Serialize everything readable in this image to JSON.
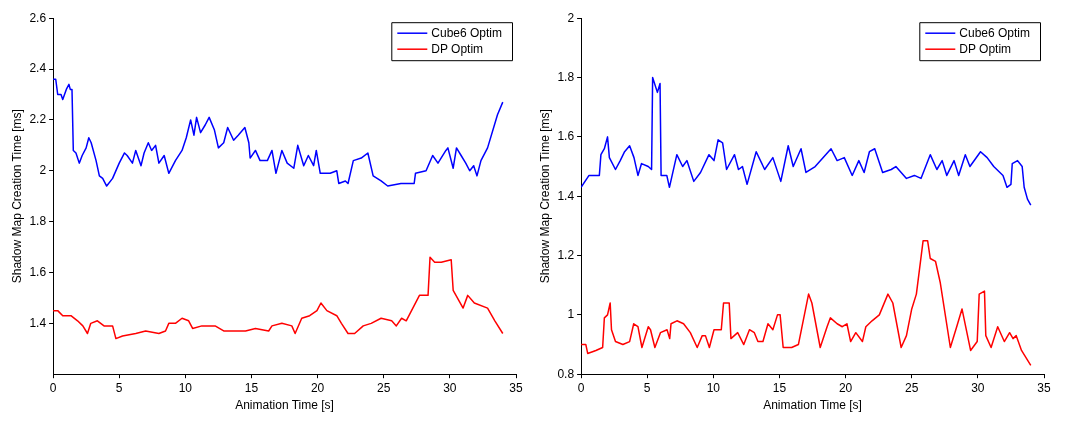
{
  "chart_data": [
    {
      "type": "line",
      "xlabel": "Animation Time [s]",
      "ylabel": "Shadow Map Creation Time [ms]",
      "xlim": [
        0,
        35
      ],
      "xticks": [
        0,
        5,
        10,
        15,
        20,
        25,
        30,
        35
      ],
      "ylim": [
        1.2,
        2.6
      ],
      "yticks": [
        1.4,
        1.6,
        1.8,
        2,
        2.2,
        2.4,
        2.6
      ],
      "grid": false,
      "legend": "top right",
      "marker": "none",
      "line_style": "solid",
      "series": [
        {
          "name": "Cube6 Optim",
          "color": "#0000ff",
          "x": [
            0,
            0.2,
            0.35,
            0.6,
            0.73,
            1.0,
            1.2,
            1.3,
            1.43,
            1.53,
            1.73,
            1.98,
            2.2,
            2.5,
            2.7,
            2.88,
            3.25,
            3.5,
            3.75,
            4.05,
            4.5,
            5.0,
            5.4,
            5.6,
            6.0,
            6.25,
            6.65,
            6.88,
            7.2,
            7.45,
            7.75,
            8.0,
            8.4,
            8.75,
            9.25,
            9.75,
            10.07,
            10.4,
            10.65,
            10.85,
            11.15,
            11.5,
            11.8,
            12.2,
            12.5,
            12.9,
            13.2,
            13.65,
            14.0,
            14.5,
            14.8,
            14.9,
            15.3,
            15.65,
            16.2,
            16.55,
            16.85,
            17.3,
            17.7,
            18.2,
            18.5,
            18.95,
            19.3,
            19.7,
            19.9,
            20.2,
            20.95,
            21.45,
            21.6,
            22.1,
            22.3,
            22.7,
            23.3,
            23.8,
            24.2,
            24.8,
            25.3,
            26.3,
            27.3,
            27.4,
            28.2,
            28.7,
            29.1,
            29.7,
            29.85,
            30.25,
            30.5,
            30.85,
            31.2,
            31.5,
            31.8,
            32.05,
            32.35,
            32.85,
            33.6,
            34.0
          ],
          "values": [
            2.36,
            2.36,
            2.3,
            2.3,
            2.28,
            2.32,
            2.34,
            2.32,
            2.32,
            2.08,
            2.07,
            2.03,
            2.06,
            2.09,
            2.13,
            2.11,
            2.04,
            1.98,
            1.97,
            1.94,
            1.97,
            2.03,
            2.07,
            2.06,
            2.03,
            2.08,
            2.02,
            2.07,
            2.11,
            2.08,
            2.1,
            2.03,
            2.06,
            1.99,
            2.04,
            2.08,
            2.13,
            2.2,
            2.14,
            2.21,
            2.15,
            2.18,
            2.21,
            2.16,
            2.09,
            2.11,
            2.17,
            2.12,
            2.14,
            2.17,
            2.11,
            2.05,
            2.08,
            2.04,
            2.04,
            2.08,
            1.99,
            2.08,
            2.03,
            2.01,
            2.1,
            2.02,
            2.06,
            2.02,
            2.08,
            1.99,
            1.99,
            2.0,
            1.95,
            1.96,
            1.95,
            2.04,
            2.05,
            2.07,
            1.98,
            1.96,
            1.94,
            1.95,
            1.95,
            1.99,
            2.0,
            2.06,
            2.03,
            2.08,
            2.09,
            2.01,
            2.09,
            2.06,
            2.03,
            2.0,
            2.02,
            1.98,
            2.04,
            2.09,
            2.22,
            2.27
          ]
        },
        {
          "name": "DP Optim",
          "color": "#ff0000",
          "x": [
            0,
            0.35,
            0.73,
            1.35,
            1.85,
            2.25,
            2.6,
            2.85,
            3.35,
            3.85,
            4.5,
            4.75,
            5.25,
            6.25,
            7.0,
            8.0,
            8.5,
            8.75,
            9.25,
            9.75,
            10.25,
            10.55,
            11.25,
            12.25,
            12.9,
            13.8,
            14.55,
            15.3,
            16.3,
            16.55,
            17.3,
            18.05,
            18.3,
            18.8,
            19.4,
            19.95,
            20.25,
            20.7,
            21.45,
            21.8,
            22.3,
            22.8,
            23.45,
            24.05,
            24.8,
            25.6,
            25.95,
            26.35,
            26.7,
            27.2,
            27.7,
            28.35,
            28.5,
            28.85,
            29.35,
            30.1,
            30.25,
            31.0,
            31.35,
            31.85,
            32.85,
            33.4,
            34.0
          ],
          "values": [
            1.45,
            1.45,
            1.43,
            1.43,
            1.41,
            1.39,
            1.36,
            1.4,
            1.41,
            1.39,
            1.39,
            1.34,
            1.35,
            1.36,
            1.37,
            1.36,
            1.37,
            1.4,
            1.4,
            1.42,
            1.41,
            1.38,
            1.39,
            1.39,
            1.37,
            1.37,
            1.37,
            1.38,
            1.37,
            1.39,
            1.4,
            1.39,
            1.36,
            1.42,
            1.43,
            1.45,
            1.48,
            1.45,
            1.43,
            1.4,
            1.36,
            1.36,
            1.39,
            1.4,
            1.42,
            1.41,
            1.39,
            1.42,
            1.41,
            1.46,
            1.51,
            1.51,
            1.66,
            1.64,
            1.64,
            1.65,
            1.53,
            1.46,
            1.51,
            1.48,
            1.46,
            1.41,
            1.36
          ]
        }
      ]
    },
    {
      "type": "line",
      "xlabel": "Animation Time [s]",
      "ylabel": "Shadow Map Creation Time [ms]",
      "xlim": [
        0,
        35
      ],
      "xticks": [
        0,
        5,
        10,
        15,
        20,
        25,
        30,
        35
      ],
      "ylim": [
        0.8,
        2
      ],
      "yticks": [
        0.8,
        1,
        1.2,
        1.4,
        1.6,
        1.8,
        2
      ],
      "grid": false,
      "legend": "top right",
      "marker": "none",
      "line_style": "solid",
      "series": [
        {
          "name": "Cube6 Optim",
          "color": "#0000ff",
          "x": [
            0,
            0.6,
            1.38,
            1.5,
            1.76,
            2.0,
            2.14,
            2.6,
            2.96,
            3.29,
            3.67,
            4.0,
            4.3,
            4.57,
            5.08,
            5.33,
            5.41,
            5.77,
            5.97,
            6.05,
            6.48,
            6.68,
            7.24,
            7.68,
            8.0,
            8.52,
            9.03,
            9.67,
            10.05,
            10.36,
            10.7,
            11.0,
            11.6,
            11.9,
            12.2,
            12.55,
            13.24,
            13.88,
            14.5,
            15.1,
            15.66,
            16.04,
            16.63,
            17.0,
            17.7,
            18.9,
            19.36,
            19.9,
            20.5,
            21.0,
            21.4,
            21.8,
            22.2,
            22.8,
            23.45,
            23.8,
            24.6,
            25.2,
            25.7,
            26.4,
            26.9,
            27.3,
            27.65,
            28.2,
            28.55,
            29.05,
            29.4,
            30.2,
            30.7,
            31.2,
            31.9,
            32.2,
            32.5,
            32.6,
            33.0,
            33.35,
            33.5,
            33.75,
            34.0
          ],
          "values": [
            1.43,
            1.47,
            1.47,
            1.54,
            1.56,
            1.6,
            1.53,
            1.49,
            1.52,
            1.55,
            1.57,
            1.53,
            1.47,
            1.51,
            1.5,
            1.49,
            1.8,
            1.75,
            1.78,
            1.47,
            1.47,
            1.43,
            1.54,
            1.5,
            1.52,
            1.45,
            1.48,
            1.54,
            1.52,
            1.59,
            1.58,
            1.49,
            1.54,
            1.49,
            1.5,
            1.44,
            1.55,
            1.49,
            1.53,
            1.45,
            1.57,
            1.5,
            1.56,
            1.48,
            1.5,
            1.56,
            1.52,
            1.53,
            1.47,
            1.52,
            1.48,
            1.55,
            1.56,
            1.48,
            1.49,
            1.5,
            1.46,
            1.47,
            1.46,
            1.54,
            1.49,
            1.52,
            1.47,
            1.52,
            1.47,
            1.54,
            1.5,
            1.55,
            1.53,
            1.5,
            1.47,
            1.43,
            1.44,
            1.51,
            1.52,
            1.5,
            1.43,
            1.39,
            1.37
          ]
        },
        {
          "name": "DP Optim",
          "color": "#ff0000",
          "x": [
            0,
            0.36,
            0.5,
            1.12,
            1.63,
            1.76,
            2.0,
            2.2,
            2.3,
            2.6,
            3.16,
            3.67,
            3.98,
            4.3,
            4.6,
            5.08,
            5.25,
            5.58,
            6.0,
            6.5,
            6.7,
            6.8,
            7.25,
            7.75,
            8.26,
            8.78,
            9.16,
            9.4,
            9.7,
            10.05,
            10.6,
            10.77,
            11.2,
            11.33,
            11.84,
            12.3,
            12.73,
            13.1,
            13.37,
            13.75,
            14.13,
            14.5,
            14.85,
            15.05,
            15.28,
            15.92,
            16.43,
            17.2,
            17.45,
            18.08,
            18.6,
            18.85,
            19.36,
            19.75,
            20.1,
            20.38,
            20.77,
            21.27,
            21.53,
            22.0,
            22.55,
            23.2,
            23.57,
            24.2,
            24.6,
            25.0,
            25.35,
            25.86,
            26.2,
            26.4,
            26.8,
            27.15,
            27.92,
            28.4,
            28.8,
            29.45,
            29.95,
            30.1,
            30.5,
            30.6,
            31.0,
            31.5,
            32.0,
            32.4,
            32.66,
            32.9,
            33.3,
            34.0
          ],
          "values": [
            0.9,
            0.9,
            0.87,
            0.88,
            0.89,
            0.99,
            1.0,
            1.04,
            0.95,
            0.91,
            0.9,
            0.91,
            0.97,
            0.96,
            0.89,
            0.96,
            0.95,
            0.89,
            0.94,
            0.95,
            0.92,
            0.97,
            0.98,
            0.97,
            0.94,
            0.89,
            0.93,
            0.93,
            0.89,
            0.95,
            0.95,
            1.04,
            1.04,
            0.92,
            0.94,
            0.9,
            0.95,
            0.94,
            0.91,
            0.91,
            0.97,
            0.95,
            1.0,
            1.0,
            0.89,
            0.89,
            0.9,
            1.07,
            1.04,
            0.89,
            0.96,
            0.99,
            0.97,
            0.96,
            0.97,
            0.91,
            0.94,
            0.91,
            0.96,
            0.98,
            1.0,
            1.07,
            1.04,
            0.89,
            0.93,
            1.02,
            1.07,
            1.25,
            1.25,
            1.19,
            1.18,
            1.11,
            0.89,
            0.96,
            1.02,
            0.88,
            0.91,
            1.07,
            1.08,
            0.93,
            0.89,
            0.96,
            0.91,
            0.94,
            0.92,
            0.93,
            0.88,
            0.83
          ]
        }
      ]
    }
  ]
}
